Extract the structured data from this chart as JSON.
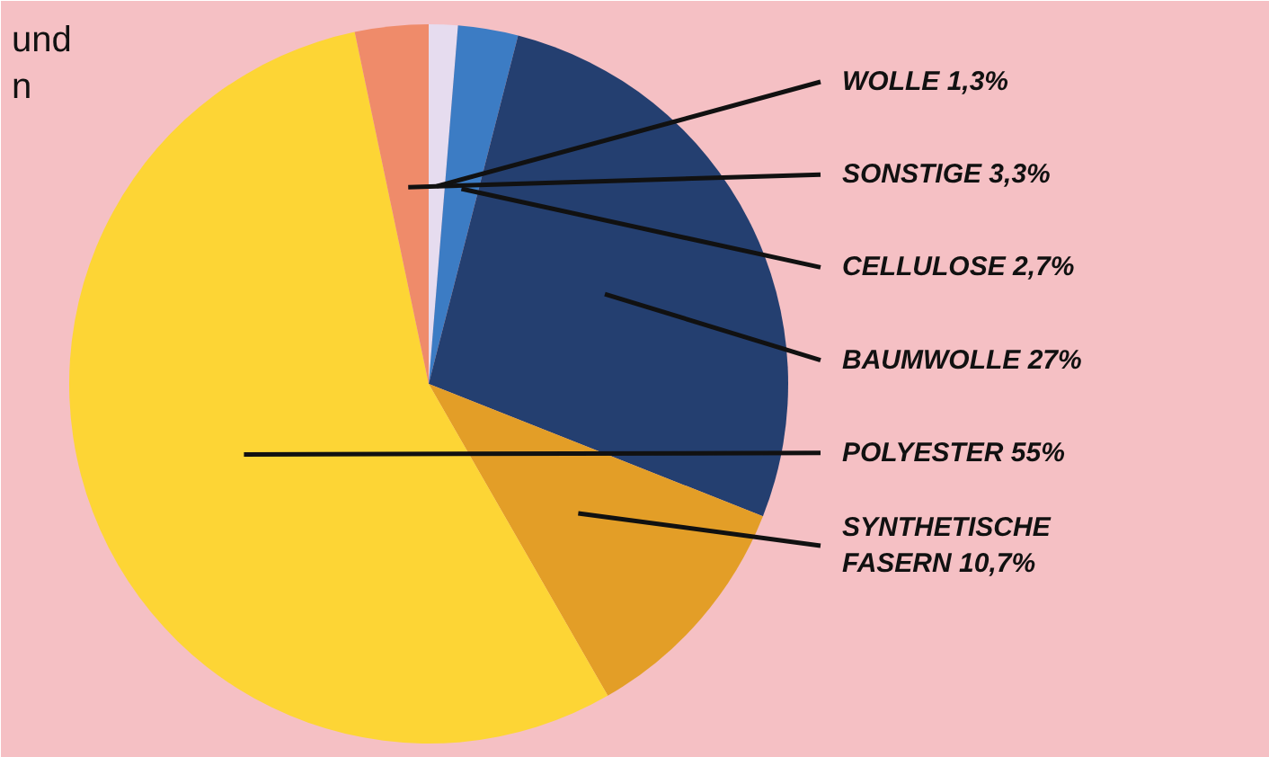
{
  "chart_data": {
    "type": "pie",
    "categories": [
      "WOLLE",
      "CELLULOSE",
      "BAUMWOLLE",
      "SYNTHETISCHE FASERN",
      "POLYESTER",
      "SONSTIGE"
    ],
    "values": [
      1.3,
      2.7,
      27,
      10.7,
      55,
      3.3
    ],
    "value_labels": [
      "1,3%",
      "2,7%",
      "27%",
      "10,7%",
      "55%",
      "3,3%"
    ],
    "colors": [
      "#e6dcef",
      "#3c7cc4",
      "#243f70",
      "#e39e27",
      "#fdd535",
      "#ef8b6a"
    ],
    "annotations": [
      "und",
      "n"
    ]
  }
}
